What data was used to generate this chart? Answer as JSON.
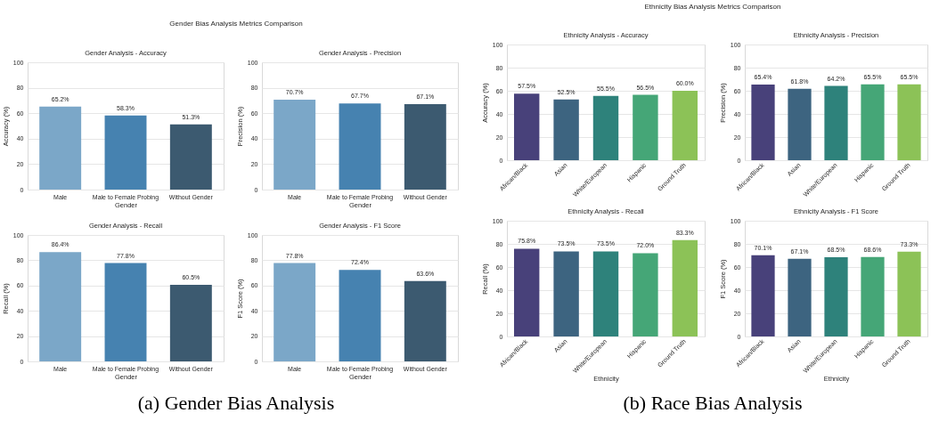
{
  "chart_data": [
    {
      "type": "bar",
      "title": "Gender Analysis - Accuracy",
      "xlabel": "Gender",
      "ylabel": "Accuracy (%)",
      "annotations": [
        "Gender Bias Analysis Metrics Comparison",
        "(a) Gender Bias Analysis"
      ],
      "categories": [
        "Male",
        "Male to Female Probing",
        "Without Gender"
      ],
      "values": [
        65.2,
        58.3,
        51.3
      ],
      "value_labels": [
        "65.2%",
        "58.3%",
        "51.3%"
      ],
      "colors": [
        "#7ba7c8",
        "#4682b0",
        "#3c5a70"
      ],
      "ylim": [
        0,
        100
      ],
      "yticks": [
        0,
        20,
        40,
        60,
        80,
        100
      ],
      "grid": "y"
    },
    {
      "type": "bar",
      "title": "Gender Analysis - Precision",
      "xlabel": "Gender",
      "ylabel": "Precision (%)",
      "categories": [
        "Male",
        "Male to Female Probing",
        "Without Gender"
      ],
      "values": [
        70.7,
        67.7,
        67.1
      ],
      "value_labels": [
        "70.7%",
        "67.7%",
        "67.1%"
      ],
      "colors": [
        "#7ba7c8",
        "#4682b0",
        "#3c5a70"
      ],
      "ylim": [
        0,
        100
      ],
      "yticks": [
        0,
        20,
        40,
        60,
        80,
        100
      ],
      "grid": "y"
    },
    {
      "type": "bar",
      "title": "Gender Analysis - Recall",
      "xlabel": "Gender",
      "ylabel": "Recall (%)",
      "categories": [
        "Male",
        "Male to Female Probing",
        "Without Gender"
      ],
      "values": [
        86.4,
        77.8,
        60.5
      ],
      "value_labels": [
        "86.4%",
        "77.8%",
        "60.5%"
      ],
      "colors": [
        "#7ba7c8",
        "#4682b0",
        "#3c5a70"
      ],
      "ylim": [
        0,
        100
      ],
      "yticks": [
        0,
        20,
        40,
        60,
        80,
        100
      ],
      "grid": "y"
    },
    {
      "type": "bar",
      "title": "Gender Analysis - F1 Score",
      "xlabel": "Gender",
      "ylabel": "F1 Score (%)",
      "categories": [
        "Male",
        "Male to Female Probing",
        "Without Gender"
      ],
      "values": [
        77.8,
        72.4,
        63.6
      ],
      "value_labels": [
        "77.8%",
        "72.4%",
        "63.6%"
      ],
      "colors": [
        "#7ba7c8",
        "#4682b0",
        "#3c5a70"
      ],
      "ylim": [
        0,
        100
      ],
      "yticks": [
        0,
        20,
        40,
        60,
        80,
        100
      ],
      "grid": "y"
    },
    {
      "type": "bar",
      "title": "Ethnicity Analysis - Accuracy",
      "ylabel": "Accuracy (%)",
      "annotations": [
        "Ethnicity Bias Analysis Metrics Comparison",
        "(b) Race Bias Analysis"
      ],
      "categories": [
        "African/Black",
        "Asian",
        "White/European",
        "Hispanic",
        "Ground Truth"
      ],
      "values": [
        57.5,
        52.5,
        55.5,
        56.5,
        60.0
      ],
      "value_labels": [
        "57.5%",
        "52.5%",
        "55.5%",
        "56.5%",
        "60.0%"
      ],
      "colors": [
        "#48417a",
        "#3d6480",
        "#2e827b",
        "#45a677",
        "#8cc257"
      ],
      "ylim": [
        0,
        100
      ],
      "yticks": [
        0,
        20,
        40,
        60,
        80,
        100
      ],
      "grid": "y"
    },
    {
      "type": "bar",
      "title": "Ethnicity Analysis - Precision",
      "ylabel": "Precision (%)",
      "categories": [
        "African/Black",
        "Asian",
        "White/European",
        "Hispanic",
        "Ground Truth"
      ],
      "values": [
        65.4,
        61.8,
        64.2,
        65.5,
        65.5
      ],
      "value_labels": [
        "65.4%",
        "61.8%",
        "64.2%",
        "65.5%",
        "65.5%"
      ],
      "colors": [
        "#48417a",
        "#3d6480",
        "#2e827b",
        "#45a677",
        "#8cc257"
      ],
      "ylim": [
        0,
        100
      ],
      "yticks": [
        0,
        20,
        40,
        60,
        80,
        100
      ],
      "grid": "y"
    },
    {
      "type": "bar",
      "title": "Ethnicity Analysis - Recall",
      "xlabel": "Ethnicity",
      "ylabel": "Recall (%)",
      "categories": [
        "African/Black",
        "Asian",
        "White/European",
        "Hispanic",
        "Ground Truth"
      ],
      "values": [
        75.8,
        73.5,
        73.5,
        72.0,
        83.3
      ],
      "value_labels": [
        "75.8%",
        "73.5%",
        "73.5%",
        "72.0%",
        "83.3%"
      ],
      "colors": [
        "#48417a",
        "#3d6480",
        "#2e827b",
        "#45a677",
        "#8cc257"
      ],
      "ylim": [
        0,
        100
      ],
      "yticks": [
        0,
        20,
        40,
        60,
        80,
        100
      ],
      "grid": "y"
    },
    {
      "type": "bar",
      "title": "Ethnicity Analysis - F1 Score",
      "xlabel": "Ethnicity",
      "ylabel": "F1 Score (%)",
      "categories": [
        "African/Black",
        "Asian",
        "White/European",
        "Hispanic",
        "Ground Truth"
      ],
      "values": [
        70.1,
        67.1,
        68.5,
        68.6,
        73.3
      ],
      "value_labels": [
        "70.1%",
        "67.1%",
        "68.5%",
        "68.6%",
        "73.3%"
      ],
      "colors": [
        "#48417a",
        "#3d6480",
        "#2e827b",
        "#45a677",
        "#8cc257"
      ],
      "ylim": [
        0,
        100
      ],
      "yticks": [
        0,
        20,
        40,
        60,
        80,
        100
      ],
      "grid": "y"
    }
  ]
}
